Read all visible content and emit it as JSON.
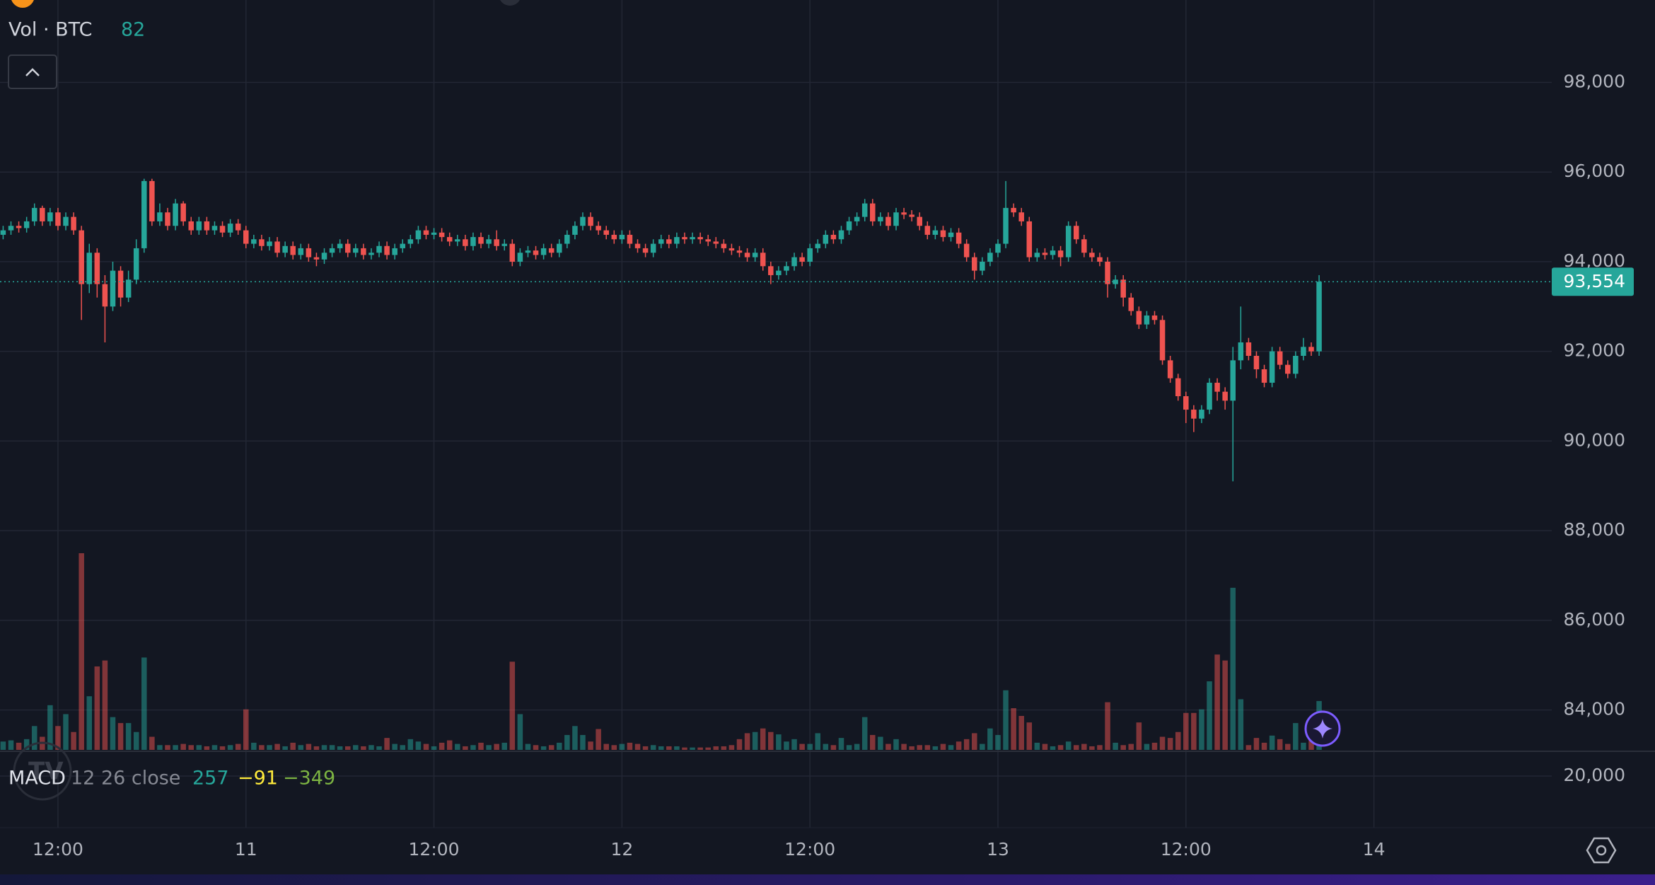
{
  "chart_data": {
    "type": "candlestick",
    "title": "Vol · BTC",
    "up_color": "#26a69a",
    "down_color": "#ef5350",
    "grid": true,
    "open": [
      94600,
      94700,
      94800,
      94750,
      94900,
      95200,
      94900,
      95100,
      94800,
      95000,
      94700,
      93500,
      94200,
      93500,
      93000,
      93800,
      93200,
      93600,
      94300,
      95800,
      94900,
      95100,
      94800,
      95300,
      94900,
      94700,
      94900,
      94700,
      94800,
      94650,
      94850,
      94700,
      94400,
      94500,
      94350,
      94450,
      94200,
      94350,
      94150,
      94300,
      94100,
      94050,
      94200,
      94300,
      94400,
      94200,
      94300,
      94150,
      94200,
      94350,
      94150,
      94300,
      94400,
      94500,
      94700,
      94600,
      94650,
      94550,
      94450,
      94500,
      94350,
      94550,
      94400,
      94500,
      94350,
      94400,
      94000,
      94200,
      94250,
      94150,
      94300,
      94200,
      94400,
      94600,
      94800,
      95000,
      94800,
      94700,
      94600,
      94500,
      94600,
      94400,
      94300,
      94200,
      94400,
      94500,
      94400,
      94550,
      94500,
      94550,
      94500,
      94450,
      94400,
      94300,
      94250,
      94200,
      94100,
      94200,
      93900,
      93700,
      93800,
      93900,
      94100,
      94000,
      94300,
      94400,
      94600,
      94500,
      94700,
      94900,
      95000,
      95300,
      94900,
      95000,
      94800,
      95100,
      95050,
      95000,
      94800,
      94600,
      94700,
      94550,
      94650,
      94400,
      94100,
      93800,
      94000,
      94200,
      94400,
      95200,
      95100,
      94900,
      94100,
      94200,
      94150,
      94250,
      94100,
      94800,
      94500,
      94200,
      94100,
      94000,
      93500,
      93600,
      93200,
      92900,
      92600,
      92800,
      92700,
      91800,
      91400,
      91000,
      90700,
      90500,
      90700,
      91300,
      91100,
      90900,
      91800,
      92200,
      91900,
      91600,
      91300,
      92000,
      91700,
      91500,
      91900,
      92100,
      92000
    ],
    "high": [
      94800,
      94900,
      94900,
      95000,
      95300,
      95250,
      95200,
      95200,
      95100,
      95100,
      94800,
      94400,
      94300,
      93700,
      94000,
      93900,
      93800,
      94500,
      95850,
      95850,
      95300,
      95200,
      95400,
      95350,
      95000,
      95000,
      95000,
      94900,
      94900,
      94950,
      94950,
      94800,
      94600,
      94600,
      94550,
      94550,
      94450,
      94450,
      94400,
      94400,
      94200,
      94300,
      94400,
      94500,
      94500,
      94400,
      94400,
      94300,
      94450,
      94450,
      94400,
      94500,
      94600,
      94800,
      94800,
      94750,
      94750,
      94650,
      94600,
      94600,
      94650,
      94650,
      94600,
      94700,
      94500,
      94500,
      94300,
      94350,
      94350,
      94400,
      94400,
      94500,
      94700,
      94900,
      95100,
      95100,
      94900,
      94800,
      94700,
      94700,
      94700,
      94500,
      94400,
      94500,
      94600,
      94600,
      94650,
      94650,
      94650,
      94650,
      94600,
      94550,
      94500,
      94400,
      94350,
      94300,
      94300,
      94300,
      94000,
      93900,
      94000,
      94200,
      94200,
      94400,
      94500,
      94700,
      94700,
      94800,
      95000,
      95100,
      95400,
      95400,
      95100,
      95100,
      95200,
      95200,
      95150,
      95100,
      94900,
      94800,
      94800,
      94750,
      94750,
      94500,
      94200,
      94100,
      94300,
      94500,
      95800,
      95300,
      95200,
      95000,
      94300,
      94300,
      94350,
      94350,
      94900,
      94900,
      94600,
      94300,
      94200,
      94100,
      93700,
      93700,
      93300,
      93000,
      92900,
      92900,
      92800,
      91900,
      91500,
      91100,
      90800,
      90800,
      91400,
      91400,
      91200,
      92100,
      93000,
      92300,
      92000,
      91700,
      92100,
      92100,
      91800,
      92000,
      92300,
      92200,
      93700
    ],
    "low": [
      94500,
      94600,
      94650,
      94650,
      94800,
      94800,
      94800,
      94700,
      94700,
      94600,
      92700,
      93300,
      93200,
      92200,
      92900,
      93000,
      93100,
      93500,
      94200,
      94800,
      94800,
      94700,
      94700,
      94800,
      94600,
      94600,
      94600,
      94600,
      94550,
      94550,
      94600,
      94300,
      94300,
      94250,
      94250,
      94100,
      94100,
      94050,
      94050,
      94000,
      93900,
      93950,
      94100,
      94200,
      94100,
      94100,
      94050,
      94050,
      94100,
      94050,
      94050,
      94200,
      94300,
      94400,
      94500,
      94500,
      94450,
      94350,
      94350,
      94250,
      94250,
      94300,
      94300,
      94250,
      94250,
      93900,
      93900,
      94100,
      94050,
      94050,
      94100,
      94100,
      94300,
      94500,
      94700,
      94700,
      94600,
      94500,
      94400,
      94400,
      94300,
      94200,
      94100,
      94100,
      94300,
      94300,
      94300,
      94400,
      94400,
      94400,
      94350,
      94300,
      94200,
      94150,
      94100,
      94000,
      94000,
      93800,
      93500,
      93600,
      93700,
      93800,
      93900,
      93900,
      94200,
      94300,
      94400,
      94400,
      94600,
      94800,
      94900,
      94800,
      94800,
      94700,
      94700,
      94950,
      94900,
      94700,
      94500,
      94500,
      94450,
      94450,
      94300,
      94000,
      93600,
      93700,
      93900,
      94100,
      94300,
      95000,
      94800,
      94000,
      94000,
      94050,
      94050,
      93900,
      94000,
      94400,
      94100,
      94000,
      93900,
      93200,
      93400,
      93000,
      92800,
      92500,
      92500,
      92600,
      91700,
      91300,
      90900,
      90400,
      90200,
      90400,
      90600,
      90900,
      90700,
      89100,
      91600,
      91800,
      91400,
      91200,
      91200,
      91600,
      91400,
      91400,
      91800,
      91900,
      91900
    ],
    "close": [
      94700,
      94800,
      94750,
      94900,
      95200,
      94900,
      95100,
      94800,
      95000,
      94700,
      93500,
      94200,
      93500,
      93000,
      93800,
      93200,
      93600,
      94300,
      95800,
      94900,
      95100,
      94800,
      95300,
      94900,
      94700,
      94900,
      94700,
      94800,
      94650,
      94850,
      94700,
      94400,
      94500,
      94350,
      94450,
      94200,
      94350,
      94150,
      94300,
      94100,
      94050,
      94200,
      94300,
      94400,
      94200,
      94300,
      94150,
      94200,
      94350,
      94150,
      94300,
      94400,
      94500,
      94700,
      94600,
      94650,
      94550,
      94450,
      94500,
      94350,
      94550,
      94400,
      94500,
      94350,
      94400,
      94000,
      94200,
      94250,
      94150,
      94300,
      94200,
      94400,
      94600,
      94800,
      95000,
      94800,
      94700,
      94600,
      94500,
      94600,
      94400,
      94300,
      94200,
      94400,
      94500,
      94400,
      94550,
      94500,
      94550,
      94500,
      94450,
      94400,
      94300,
      94250,
      94200,
      94100,
      94200,
      93900,
      93700,
      93800,
      93900,
      94100,
      94000,
      94300,
      94400,
      94600,
      94500,
      94700,
      94900,
      95000,
      95300,
      94900,
      95000,
      94800,
      95100,
      95050,
      95000,
      94800,
      94600,
      94700,
      94550,
      94650,
      94400,
      94100,
      93800,
      94000,
      94200,
      94400,
      95200,
      95100,
      94900,
      94100,
      94200,
      94150,
      94250,
      94100,
      94800,
      94500,
      94200,
      94100,
      94000,
      93500,
      93600,
      93200,
      92900,
      92600,
      92800,
      92700,
      91800,
      91400,
      91000,
      90700,
      90500,
      90700,
      91300,
      91100,
      90900,
      91800,
      92200,
      91900,
      91600,
      91300,
      92000,
      91700,
      91500,
      91900,
      92100,
      92000,
      93554
    ],
    "volume": [
      14,
      16,
      12,
      18,
      40,
      22,
      75,
      40,
      60,
      30,
      330,
      90,
      140,
      150,
      55,
      45,
      45,
      30,
      155,
      22,
      8,
      8,
      8,
      10,
      8,
      8,
      6,
      8,
      6,
      8,
      10,
      68,
      12,
      8,
      8,
      10,
      6,
      12,
      8,
      10,
      6,
      8,
      8,
      6,
      6,
      8,
      6,
      8,
      6,
      20,
      10,
      8,
      18,
      14,
      10,
      6,
      12,
      16,
      10,
      6,
      8,
      12,
      8,
      10,
      12,
      148,
      60,
      10,
      8,
      6,
      8,
      12,
      25,
      40,
      25,
      14,
      35,
      10,
      8,
      10,
      12,
      10,
      6,
      8,
      6,
      6,
      6,
      4,
      4,
      4,
      4,
      6,
      6,
      8,
      18,
      28,
      30,
      36,
      30,
      26,
      14,
      18,
      10,
      10,
      28,
      10,
      8,
      20,
      8,
      10,
      55,
      25,
      22,
      10,
      18,
      10,
      6,
      8,
      8,
      6,
      10,
      8,
      14,
      18,
      28,
      10,
      36,
      25,
      100,
      70,
      57,
      46,
      12,
      10,
      6,
      8,
      14,
      8,
      10,
      6,
      8,
      80,
      12,
      8,
      10,
      46,
      10,
      12,
      22,
      20,
      30,
      62,
      62,
      68,
      115,
      160,
      150,
      272,
      85,
      8,
      20,
      12,
      24,
      18,
      10,
      45,
      12,
      39,
      82
    ],
    "xlim": [
      -0.4,
      197.7
    ],
    "xticks": [
      {
        "value": 7,
        "label": "12:00"
      },
      {
        "value": 31,
        "label": "11"
      },
      {
        "value": 55,
        "label": "12:00"
      },
      {
        "value": 79,
        "label": "12"
      },
      {
        "value": 103,
        "label": "12:00"
      },
      {
        "value": 127,
        "label": "13"
      },
      {
        "value": 151,
        "label": "12:00"
      },
      {
        "value": 175,
        "label": "14"
      }
    ],
    "ylim": [
      83110,
      99838
    ],
    "yticks": [
      {
        "value": 84000,
        "label": "84,000"
      },
      {
        "value": 86000,
        "label": "86,000"
      },
      {
        "value": 88000,
        "label": "88,000"
      },
      {
        "value": 90000,
        "label": "90,000"
      },
      {
        "value": 92000,
        "label": "92,000"
      },
      {
        "value": 94000,
        "label": "94,000"
      },
      {
        "value": 96000,
        "label": "96,000"
      },
      {
        "value": 98000,
        "label": "98,000"
      }
    ],
    "price_line": {
      "value": 93554,
      "label": "93,554"
    },
    "macd": {
      "title": "MACD",
      "params": "12 26 close",
      "values": [
        257,
        -91,
        -349
      ],
      "value_labels": [
        "257",
        "−91",
        "−349"
      ],
      "yticks": [
        {
          "value": 20000,
          "label": "20,000"
        }
      ]
    }
  }
}
